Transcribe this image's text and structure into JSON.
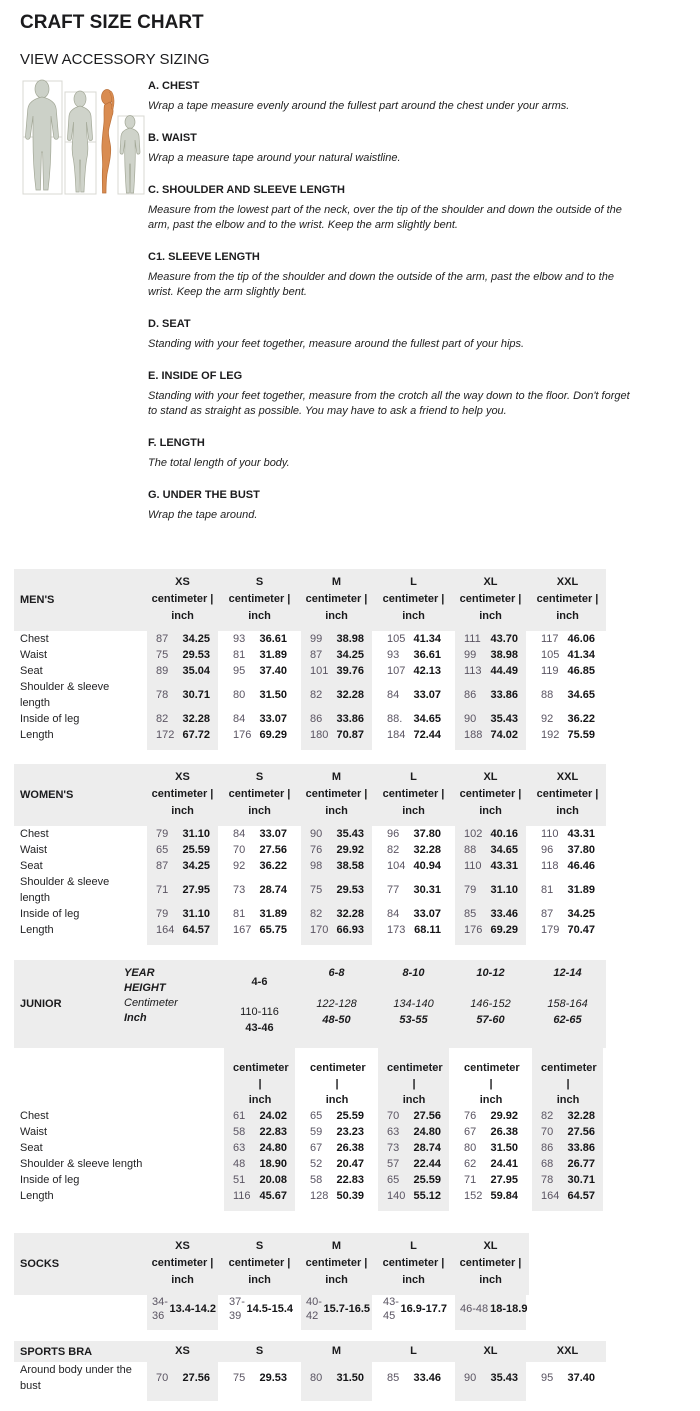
{
  "page": {
    "title": "CRAFT SIZE CHART",
    "subtitle": "VIEW ACCESSORY SIZING"
  },
  "colors": {
    "table_gray": "#ededed",
    "cm_text": "#5a5462",
    "accent_orange": "#d78a4f"
  },
  "unit_label": {
    "line1": "centimeter |",
    "line2": "inch"
  },
  "measurements": [
    {
      "heading": "A. CHEST",
      "desc": "Wrap a tape measure evenly around the fullest part around the chest under your arms."
    },
    {
      "heading": "B. WAIST",
      "desc": "Wrap a measure tape around your natural waistline."
    },
    {
      "heading": "C. SHOULDER AND SLEEVE LENGTH",
      "desc": "Measure from the lowest part of the neck, over the tip of the shoulder and down the outside of the arm, past the elbow and to the wrist. Keep the arm slightly bent."
    },
    {
      "heading": "C1. SLEEVE LENGTH",
      "desc": "Measure from the tip of the shoulder and down the outside of the arm, past the elbow and to the wrist. Keep the arm slightly bent."
    },
    {
      "heading": "D. SEAT",
      "desc": "Standing with your feet together, measure around the fullest part of your hips."
    },
    {
      "heading": "E. INSIDE OF LEG",
      "desc": "Standing with your feet together, measure from the crotch all the way down to the floor. Don't forget to stand as straight as possible. You may have to ask a friend to help you."
    },
    {
      "heading": "F. LENGTH",
      "desc": "The total length of your body."
    },
    {
      "heading": "G. UNDER THE BUST",
      "desc": "Wrap the tape around."
    }
  ],
  "tables": {
    "mens": {
      "name": "MEN'S",
      "sizes": [
        "XS",
        "S",
        "M",
        "L",
        "XL",
        "XXL"
      ],
      "rows": [
        {
          "label": "Chest",
          "values": [
            [
              "87",
              "34.25"
            ],
            [
              "93",
              "36.61"
            ],
            [
              "99",
              "38.98"
            ],
            [
              "105",
              "41.34"
            ],
            [
              "111",
              "43.70"
            ],
            [
              "117",
              "46.06"
            ]
          ]
        },
        {
          "label": "Waist",
          "values": [
            [
              "75",
              "29.53"
            ],
            [
              "81",
              "31.89"
            ],
            [
              "87",
              "34.25"
            ],
            [
              "93",
              "36.61"
            ],
            [
              "99",
              "38.98"
            ],
            [
              "105",
              "41.34"
            ]
          ]
        },
        {
          "label": "Seat",
          "values": [
            [
              "89",
              "35.04"
            ],
            [
              "95",
              "37.40"
            ],
            [
              "101",
              "39.76"
            ],
            [
              "107",
              "42.13"
            ],
            [
              "113",
              "44.49"
            ],
            [
              "119",
              "46.85"
            ]
          ]
        },
        {
          "label": "Shoulder & sleeve length",
          "values": [
            [
              "78",
              "30.71"
            ],
            [
              "80",
              "31.50"
            ],
            [
              "82",
              "32.28"
            ],
            [
              "84",
              "33.07"
            ],
            [
              "86",
              "33.86"
            ],
            [
              "88",
              "34.65"
            ]
          ]
        },
        {
          "label": "Inside of leg",
          "values": [
            [
              "82",
              "32.28"
            ],
            [
              "84",
              "33.07"
            ],
            [
              "86",
              "33.86"
            ],
            [
              "88.",
              "34.65"
            ],
            [
              "90",
              "35.43"
            ],
            [
              "92",
              "36.22"
            ]
          ]
        },
        {
          "label": "Length",
          "values": [
            [
              "172",
              "67.72"
            ],
            [
              "176",
              "69.29"
            ],
            [
              "180",
              "70.87"
            ],
            [
              "184",
              "72.44"
            ],
            [
              "188",
              "74.02"
            ],
            [
              "192",
              "75.59"
            ]
          ]
        }
      ]
    },
    "womens": {
      "name": "WOMEN'S",
      "sizes": [
        "XS",
        "S",
        "M",
        "L",
        "XL",
        "XXL"
      ],
      "rows": [
        {
          "label": "Chest",
          "values": [
            [
              "79",
              "31.10"
            ],
            [
              "84",
              "33.07"
            ],
            [
              "90",
              "35.43"
            ],
            [
              "96",
              "37.80"
            ],
            [
              "102",
              "40.16"
            ],
            [
              "110",
              "43.31"
            ]
          ]
        },
        {
          "label": "Waist",
          "values": [
            [
              "65",
              "25.59"
            ],
            [
              "70",
              "27.56"
            ],
            [
              "76",
              "29.92"
            ],
            [
              "82",
              "32.28"
            ],
            [
              "88",
              "34.65"
            ],
            [
              "96",
              "37.80"
            ]
          ]
        },
        {
          "label": "Seat",
          "values": [
            [
              "87",
              "34.25"
            ],
            [
              "92",
              "36.22"
            ],
            [
              "98",
              "38.58"
            ],
            [
              "104",
              "40.94"
            ],
            [
              "110",
              "43.31"
            ],
            [
              "118",
              "46.46"
            ]
          ]
        },
        {
          "label": "Shoulder & sleeve length",
          "values": [
            [
              "71",
              "27.95"
            ],
            [
              "73",
              "28.74"
            ],
            [
              "75",
              "29.53"
            ],
            [
              "77",
              "30.31"
            ],
            [
              "79",
              "31.10"
            ],
            [
              "81",
              "31.89"
            ]
          ]
        },
        {
          "label": "Inside of leg",
          "values": [
            [
              "79",
              "31.10"
            ],
            [
              "81",
              "31.89"
            ],
            [
              "82",
              "32.28"
            ],
            [
              "84",
              "33.07"
            ],
            [
              "85",
              "33.46"
            ],
            [
              "87",
              "34.25"
            ]
          ]
        },
        {
          "label": "Length",
          "values": [
            [
              "164",
              "64.57"
            ],
            [
              "167",
              "65.75"
            ],
            [
              "170",
              "66.93"
            ],
            [
              "173",
              "68.11"
            ],
            [
              "176",
              "69.29"
            ],
            [
              "179",
              "70.47"
            ]
          ]
        }
      ]
    },
    "junior": {
      "name": "JUNIOR",
      "header_labels": {
        "year": "YEAR",
        "height": "HEIGHT",
        "centimeter": "Centimeter",
        "inch": "Inch"
      },
      "columns": [
        {
          "year": "4-6",
          "cm": "110-116",
          "inch": "43-46",
          "upright": true
        },
        {
          "year": "6-8",
          "cm": "122-128",
          "inch": "48-50"
        },
        {
          "year": "8-10",
          "cm": "134-140",
          "inch": "53-55"
        },
        {
          "year": "10-12",
          "cm": "146-152",
          "inch": "57-60"
        },
        {
          "year": "12-14",
          "cm": "158-164",
          "inch": "62-65"
        }
      ],
      "rows": [
        {
          "label": "Chest",
          "values": [
            [
              "61",
              "24.02"
            ],
            [
              "65",
              "25.59"
            ],
            [
              "70",
              "27.56"
            ],
            [
              "76",
              "29.92"
            ],
            [
              "82",
              "32.28"
            ]
          ]
        },
        {
          "label": "Waist",
          "values": [
            [
              "58",
              "22.83"
            ],
            [
              "59",
              "23.23"
            ],
            [
              "63",
              "24.80"
            ],
            [
              "67",
              "26.38"
            ],
            [
              "70",
              "27.56"
            ]
          ]
        },
        {
          "label": "Seat",
          "values": [
            [
              "63",
              "24.80"
            ],
            [
              "67",
              "26.38"
            ],
            [
              "73",
              "28.74"
            ],
            [
              "80",
              "31.50"
            ],
            [
              "86",
              "33.86"
            ]
          ]
        },
        {
          "label": "Shoulder & sleeve length",
          "values": [
            [
              "48",
              "18.90"
            ],
            [
              "52",
              "20.47"
            ],
            [
              "57",
              "22.44"
            ],
            [
              "62",
              "24.41"
            ],
            [
              "68",
              "26.77"
            ]
          ]
        },
        {
          "label": "Inside of leg",
          "values": [
            [
              "51",
              "20.08"
            ],
            [
              "58",
              "22.83"
            ],
            [
              "65",
              "25.59"
            ],
            [
              "71",
              "27.95"
            ],
            [
              "78",
              "30.71"
            ]
          ]
        },
        {
          "label": "Length",
          "values": [
            [
              "116",
              "45.67"
            ],
            [
              "128",
              "50.39"
            ],
            [
              "140",
              "55.12"
            ],
            [
              "152",
              "59.84"
            ],
            [
              "164",
              "64.57"
            ]
          ]
        }
      ]
    },
    "socks": {
      "name": "SOCKS",
      "sizes": [
        "XS",
        "S",
        "M",
        "L",
        "XL"
      ],
      "rows": [
        {
          "label": "",
          "values": [
            [
              "34-36",
              "13.4-14.2"
            ],
            [
              "37-39",
              "14.5-15.4"
            ],
            [
              "40-42",
              "15.7-16.5"
            ],
            [
              "43-45",
              "16.9-17.7"
            ],
            [
              "46-48",
              "18-18.9"
            ]
          ]
        }
      ]
    },
    "sportsbra": {
      "name": "SPORTS BRA",
      "sizes": [
        "XS",
        "S",
        "M",
        "L",
        "XL",
        "XXL"
      ],
      "rows": [
        {
          "label": "Around body under the bust",
          "values": [
            [
              "70",
              "27.56"
            ],
            [
              "75",
              "29.53"
            ],
            [
              "80",
              "31.50"
            ],
            [
              "85",
              "33.46"
            ],
            [
              "90",
              "35.43"
            ],
            [
              "95",
              "37.40"
            ]
          ]
        }
      ]
    }
  }
}
